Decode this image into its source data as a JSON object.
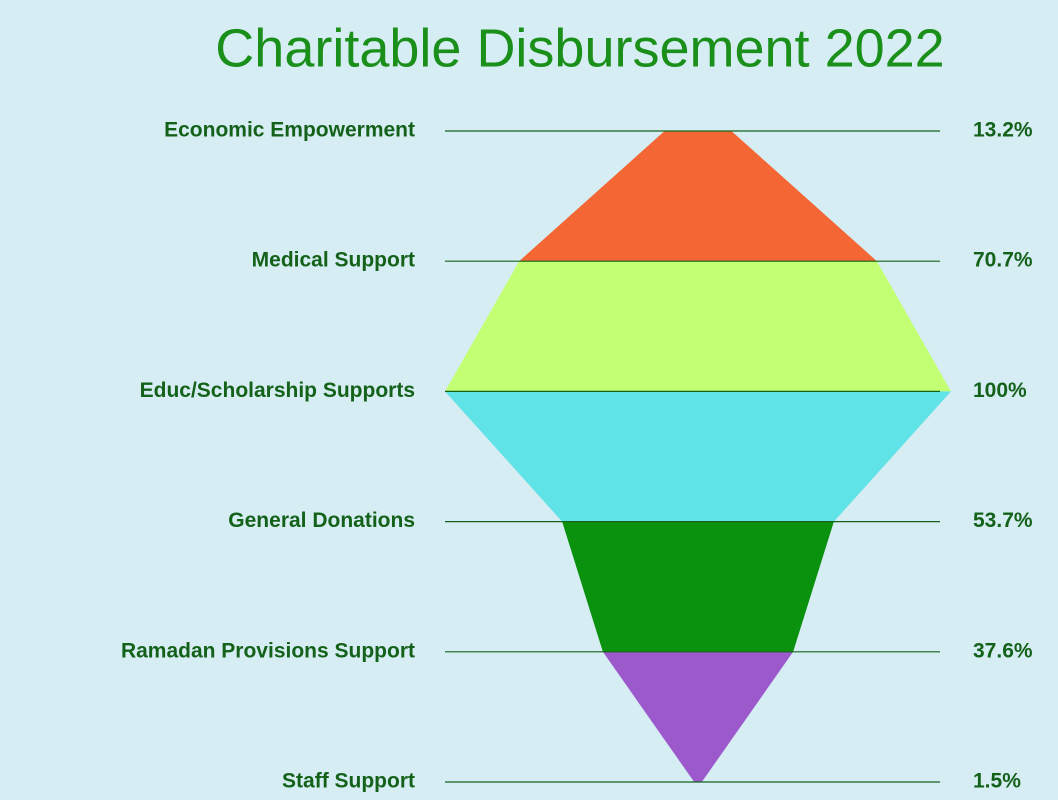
{
  "chart_data": {
    "type": "funnel",
    "title": "Charitable Disbursement 2022",
    "categories": [
      "Economic Empowerment",
      "Medical Support",
      "Educ/Scholarship Supports",
      "General Donations",
      "Ramadan Provisions Support",
      "Staff Support"
    ],
    "values": [
      13.2,
      70.7,
      100,
      53.7,
      37.6,
      1.5
    ],
    "value_labels": [
      "13.2%",
      "70.7%",
      "100%",
      "53.7%",
      "37.6%",
      "1.5%"
    ],
    "colors": [
      "#f46734",
      "#c3ff73",
      "#5fe3e6",
      "#0a910e",
      "#9b59cc"
    ]
  }
}
